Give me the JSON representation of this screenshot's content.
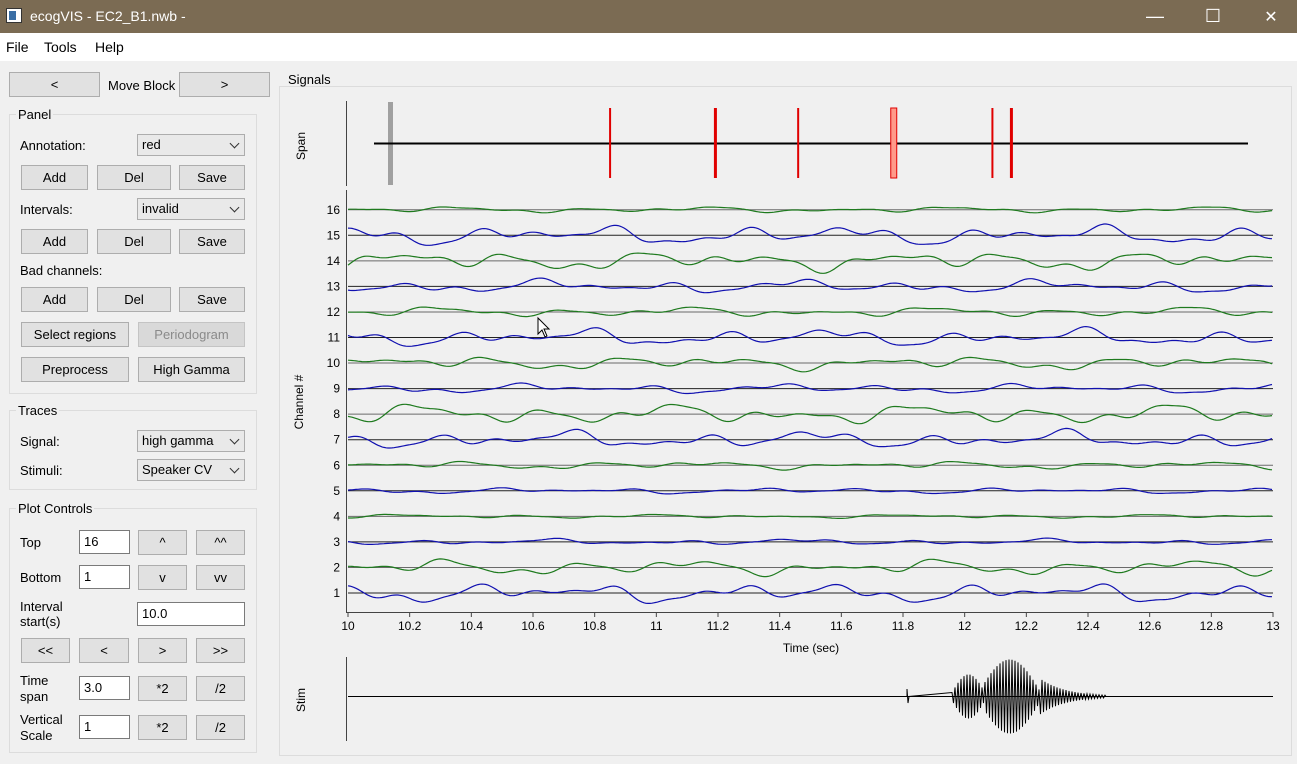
{
  "window": {
    "title": "ecogVIS - EC2_B1.nwb -",
    "minimize": "—",
    "maximize": "☐",
    "close": "✕"
  },
  "menu": [
    "File",
    "Tools",
    "Help"
  ],
  "move_block": {
    "prev": "<",
    "label": "Move Block",
    "next": ">"
  },
  "panel": {
    "title": "Panel",
    "annotation_label": "Annotation:",
    "annotation_value": "red",
    "intervals_label": "Intervals:",
    "intervals_value": "invalid",
    "bad_channels_label": "Bad channels:",
    "add": "Add",
    "del": "Del",
    "save": "Save",
    "select_regions": "Select regions",
    "periodogram": "Periodogram",
    "preprocess": "Preprocess",
    "high_gamma": "High Gamma"
  },
  "traces": {
    "title": "Traces",
    "signal_label": "Signal:",
    "signal_value": "high gamma",
    "stimuli_label": "Stimuli:",
    "stimuli_value": "Speaker CV"
  },
  "plot_controls": {
    "title": "Plot Controls",
    "top_label": "Top",
    "top_value": "16",
    "up": "^",
    "up2": "^^",
    "bottom_label": "Bottom",
    "bottom_value": "1",
    "down": "v",
    "down2": "vv",
    "interval_label_1": "Interval",
    "interval_label_2": "start(s)",
    "interval_value": "10.0",
    "first": "<<",
    "prev": "<",
    "next": ">",
    "last": ">>",
    "timespan_label_1": "Time",
    "timespan_label_2": "span",
    "timespan_value": "3.0",
    "vscale_label_1": "Vertical",
    "vscale_label_2": "Scale",
    "vscale_value": "1",
    "times2": "*2",
    "div2": "/2"
  },
  "signals": {
    "title": "Signals",
    "span_label": "Span",
    "channel_label": "Channel #",
    "time_label": "Time (sec)",
    "stim_label": "Stim",
    "channels": [
      "1",
      "2",
      "3",
      "4",
      "5",
      "6",
      "7",
      "8",
      "9",
      "10",
      "11",
      "12",
      "13",
      "14",
      "15",
      "16"
    ],
    "x_ticks": [
      "10",
      "10.2",
      "10.4",
      "10.6",
      "10.8",
      "11",
      "11.2",
      "11.4",
      "11.6",
      "11.8",
      "12",
      "12.2",
      "12.4",
      "12.6",
      "12.8",
      "13"
    ],
    "colors": {
      "green": "#1e7a1e",
      "blue": "#1010b0",
      "red": "#e00000",
      "pink": "#ff9a8a"
    }
  },
  "chart_data": {
    "type": "line",
    "xlabel": "Time (sec)",
    "ylabel": "Channel #",
    "xlim": [
      10,
      13
    ],
    "ylim": [
      1,
      16
    ],
    "span_markers": [
      10.85,
      11.19,
      11.46,
      11.77,
      12.09,
      12.15
    ],
    "span_window": [
      10.08,
      12.92
    ]
  }
}
